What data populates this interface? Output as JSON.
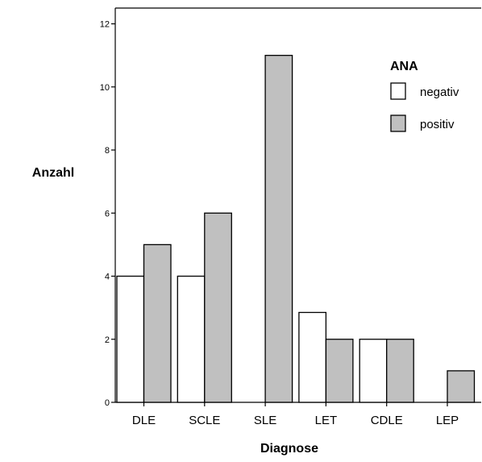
{
  "chart_data": {
    "type": "bar",
    "categories": [
      "DLE",
      "SCLE",
      "SLE",
      "LET",
      "CDLE",
      "LEP"
    ],
    "series": [
      {
        "name": "negativ",
        "values": [
          4,
          4,
          0,
          2.85,
          2,
          0
        ],
        "color": "#ffffff"
      },
      {
        "name": "positiv",
        "values": [
          5,
          6,
          11,
          2,
          2,
          1
        ],
        "color": "#c0c0c0"
      }
    ],
    "xlabel": "Diagnose",
    "ylabel": "Anzahl",
    "ylim": [
      0,
      12.5
    ],
    "yticks": [
      0,
      2,
      4,
      6,
      8,
      10,
      12
    ],
    "legend": {
      "title": "ANA",
      "position": "top-right"
    },
    "grid": false
  }
}
